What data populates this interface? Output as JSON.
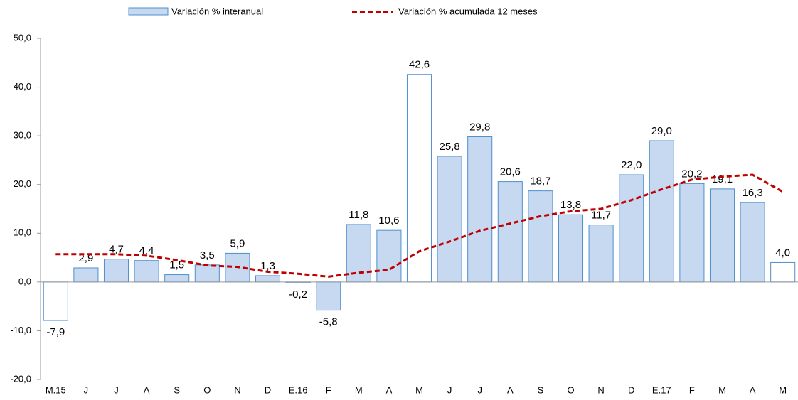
{
  "chart_data": {
    "type": "bar_line",
    "categories": [
      "M.15",
      "J",
      "J",
      "A",
      "S",
      "O",
      "N",
      "D",
      "E.16",
      "F",
      "M",
      "A",
      "M",
      "J",
      "J",
      "A",
      "S",
      "O",
      "N",
      "D",
      "E.17",
      "F",
      "M",
      "A",
      "M"
    ],
    "series": [
      {
        "name": "Variación % interanual",
        "type": "bar",
        "color": "#c6d9f1",
        "edge_color": "#4f8fcc",
        "colors": [
          "#ffffff",
          "#c6d9f1",
          "#c6d9f1",
          "#c6d9f1",
          "#c6d9f1",
          "#c6d9f1",
          "#c6d9f1",
          "#c6d9f1",
          "#c6d9f1",
          "#c6d9f1",
          "#c6d9f1",
          "#c6d9f1",
          "#ffffff",
          "#c6d9f1",
          "#c6d9f1",
          "#c6d9f1",
          "#c6d9f1",
          "#c6d9f1",
          "#c6d9f1",
          "#c6d9f1",
          "#c6d9f1",
          "#c6d9f1",
          "#c6d9f1",
          "#c6d9f1",
          "#ffffff"
        ],
        "values": [
          -7.9,
          2.9,
          4.7,
          4.4,
          1.5,
          3.5,
          5.9,
          1.3,
          -0.2,
          -5.8,
          11.8,
          10.6,
          42.6,
          25.8,
          29.8,
          20.6,
          18.7,
          13.8,
          11.7,
          22.0,
          29.0,
          20.2,
          19.1,
          16.3,
          4.0
        ],
        "value_labels": [
          "-7,9",
          "2,9",
          "4,7",
          "4,4",
          "1,5",
          "3,5",
          "5,9",
          "1,3",
          "-0,2",
          "-5,8",
          "11,8",
          "10,6",
          "42,6",
          "25,8",
          "29,8",
          "20,6",
          "18,7",
          "13,8",
          "11,7",
          "22,0",
          "29,0",
          "20,2",
          "19,1",
          "16,3",
          "4,0"
        ]
      },
      {
        "name": "Variación % acumulada 12 meses",
        "type": "line",
        "color": "#c00000",
        "values": [
          5.7,
          5.7,
          5.7,
          5.4,
          4.5,
          3.4,
          3.1,
          2.1,
          1.7,
          1.1,
          1.9,
          2.5,
          6.3,
          8.3,
          10.5,
          12.0,
          13.5,
          14.5,
          15.0,
          16.8,
          19.0,
          21.0,
          21.6,
          22.0,
          18.5
        ]
      }
    ],
    "ylim": [
      -20,
      50
    ],
    "yticks": [
      {
        "value": -20,
        "label": "-20,0"
      },
      {
        "value": -10,
        "label": "-10,0"
      },
      {
        "value": 0,
        "label": "0,0"
      },
      {
        "value": 10,
        "label": "10,0"
      },
      {
        "value": 20,
        "label": "20,0"
      },
      {
        "value": 30,
        "label": "30,0"
      },
      {
        "value": 40,
        "label": "40,0"
      },
      {
        "value": 50,
        "label": "50,0"
      }
    ],
    "legend": "top"
  }
}
